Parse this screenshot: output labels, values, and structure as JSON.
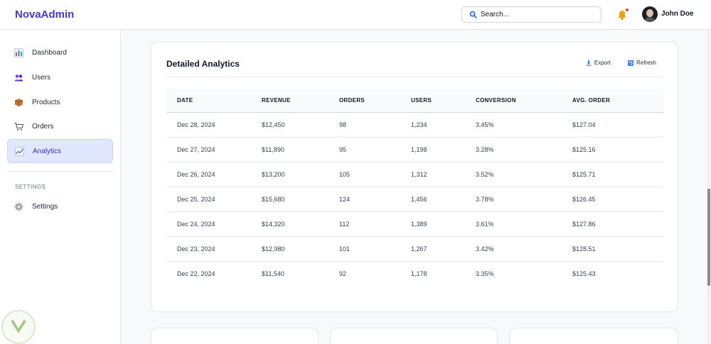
{
  "header": {
    "logo": "NovaAdmin",
    "search_placeholder": "Search...",
    "user_name": "John Doe",
    "icons": [
      "search-icon",
      "bell-icon",
      "avatar"
    ]
  },
  "sidebar": {
    "items": [
      {
        "label": "Dashboard",
        "icon": "bar-chart-icon"
      },
      {
        "label": "Users",
        "icon": "users-icon"
      },
      {
        "label": "Products",
        "icon": "box-icon"
      },
      {
        "label": "Orders",
        "icon": "cart-icon"
      },
      {
        "label": "Analytics",
        "icon": "trend-chart-icon",
        "active": true
      }
    ],
    "settings_section": "SETTINGS",
    "settings_item": {
      "label": "Settings",
      "icon": "gear-icon"
    }
  },
  "analytics": {
    "title": "Detailed Analytics",
    "export_label": "Export",
    "refresh_label": "Refresh",
    "columns": [
      "DATE",
      "REVENUE",
      "ORDERS",
      "USERS",
      "CONVERSION",
      "AVG. ORDER"
    ],
    "rows": [
      [
        "Dec 28, 2024",
        "$12,450",
        "98",
        "1,234",
        "3.45%",
        "$127.04"
      ],
      [
        "Dec 27, 2024",
        "$11,890",
        "95",
        "1,198",
        "3.28%",
        "$125.16"
      ],
      [
        "Dec 26, 2024",
        "$13,200",
        "105",
        "1,312",
        "3.52%",
        "$125.71"
      ],
      [
        "Dec 25, 2024",
        "$15,680",
        "124",
        "1,456",
        "3.78%",
        "$126.45"
      ],
      [
        "Dec 24, 2024",
        "$14,320",
        "112",
        "1,389",
        "3.61%",
        "$127.86"
      ],
      [
        "Dec 23, 2024",
        "$12,980",
        "101",
        "1,267",
        "3.42%",
        "$128.51"
      ],
      [
        "Dec 22, 2024",
        "$11,540",
        "92",
        "1,178",
        "3.35%",
        "$125.43"
      ]
    ]
  },
  "colors": {
    "accent": "#4338ca",
    "active_bg": "#e0e7ff",
    "notification": "#ef4444"
  }
}
